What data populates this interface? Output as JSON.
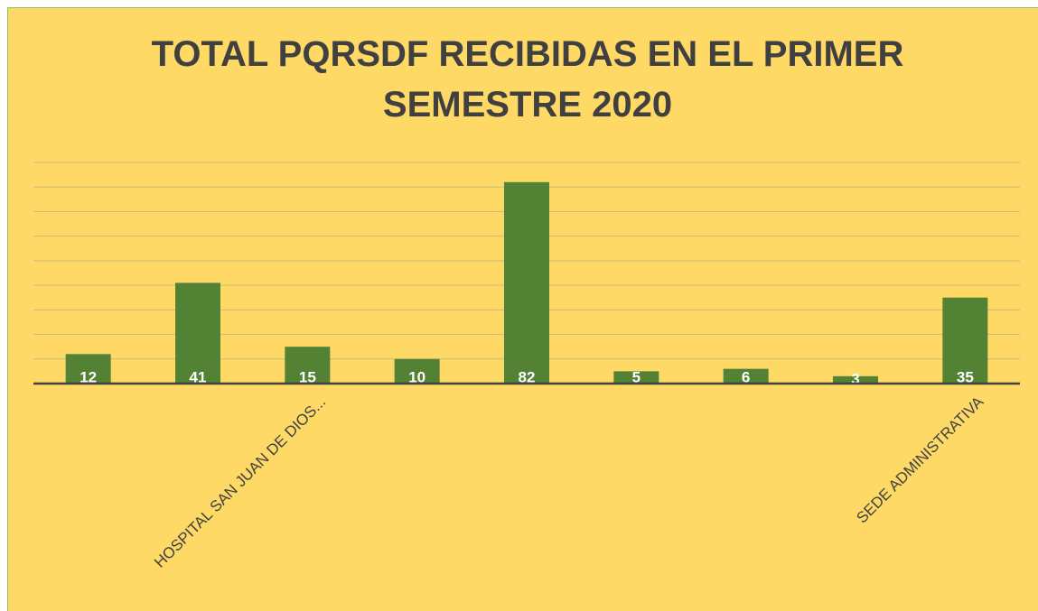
{
  "chart_data": {
    "type": "bar",
    "title": "TOTAL PQRSDF RECIBIDAS EN EL PRIMER SEMESTRE 2020",
    "categories": [
      null,
      null,
      "HOSPITAL SAN JUAN DE DIOS...",
      null,
      null,
      null,
      null,
      null,
      "SEDE ADMINISTRATIVA"
    ],
    "values": [
      12,
      41,
      15,
      10,
      82,
      5,
      6,
      3,
      35
    ],
    "color": "#548235",
    "ylim": [
      0,
      90
    ],
    "yticks": [
      0,
      10,
      20,
      30,
      40,
      50,
      60,
      70,
      80,
      90
    ],
    "grid": true
  }
}
